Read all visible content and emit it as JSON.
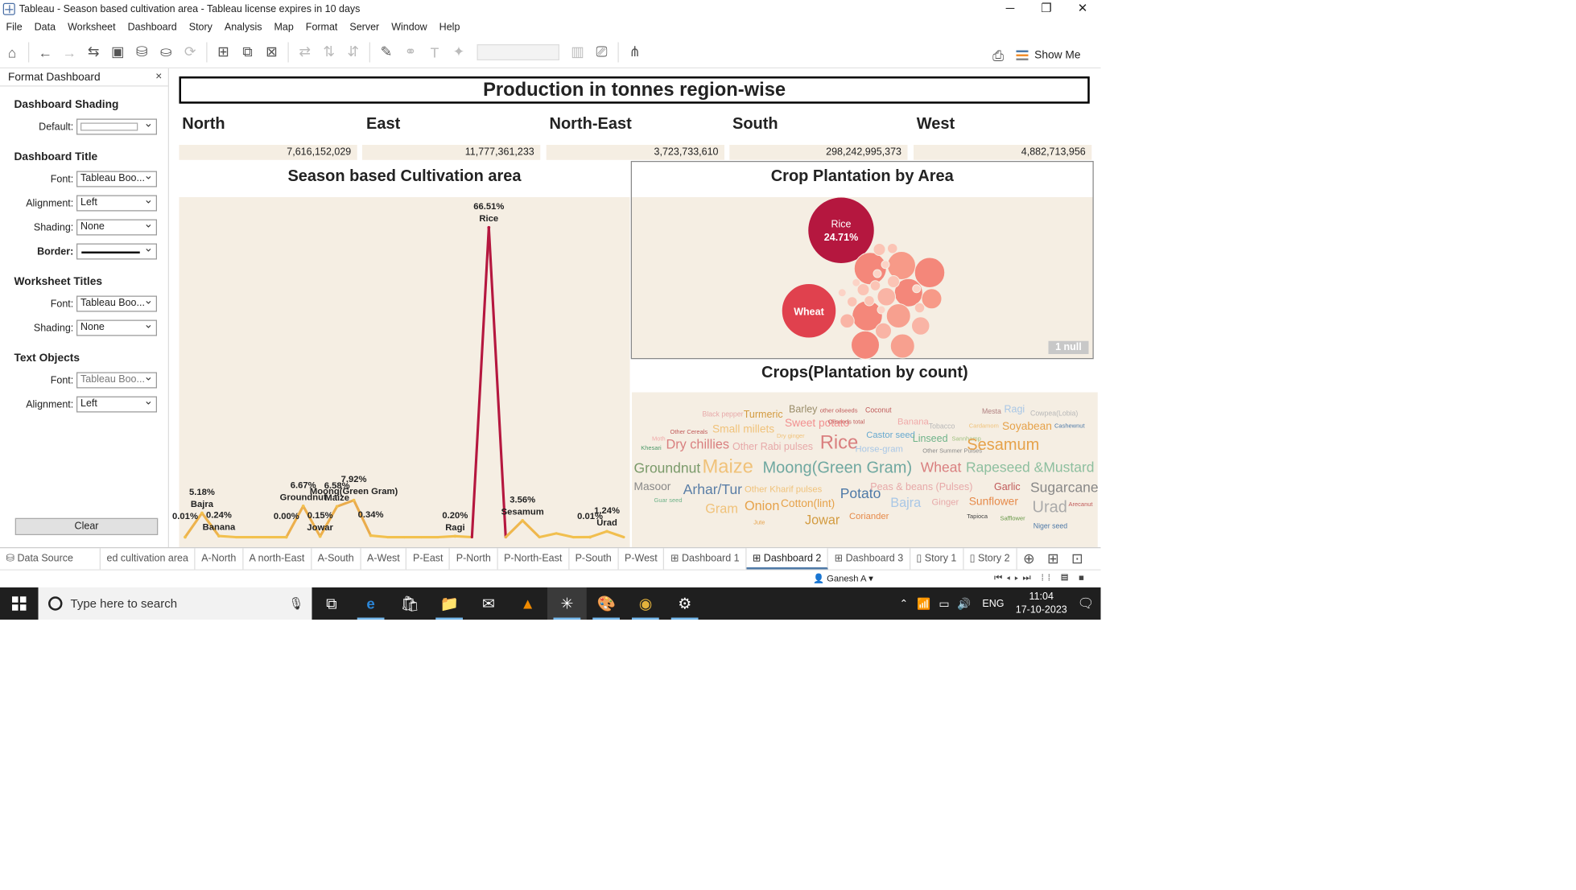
{
  "window": {
    "title": "Tableau - Season based cultivation area - Tableau license expires in 10 days",
    "controls": [
      "─",
      "❐",
      "✕"
    ]
  },
  "menu": [
    "File",
    "Data",
    "Worksheet",
    "Dashboard",
    "Story",
    "Analysis",
    "Map",
    "Format",
    "Server",
    "Window",
    "Help"
  ],
  "toolbar": {
    "show_me_label": "Show Me"
  },
  "format_panel": {
    "title": "Format Dashboard",
    "close": "×",
    "shading_section": "Dashboard Shading",
    "default_label": "Default:",
    "title_section": "Dashboard Title",
    "font_label": "Font:",
    "font_value": "Tableau Boo...",
    "alignment_label": "Alignment:",
    "alignment_value": "Left",
    "shading_label": "Shading:",
    "shading_value": "None",
    "border_label": "Border:",
    "worksheet_section": "Worksheet Titles",
    "ws_font_value": "Tableau Boo...",
    "ws_shading_value": "None",
    "text_section": "Text Objects",
    "txt_font_value": "Tableau Boo...",
    "txt_alignment_value": "Left",
    "clear_label": "Clear"
  },
  "dashboard": {
    "title": "Production in tonnes region-wise",
    "regions": [
      {
        "name": "North",
        "value": "7,616,152,029"
      },
      {
        "name": "East",
        "value": "11,777,361,233"
      },
      {
        "name": "North-East",
        "value": "3,723,733,610"
      },
      {
        "name": "South",
        "value": "298,242,995,373"
      },
      {
        "name": "West",
        "value": "4,882,713,956"
      }
    ],
    "line_title": "Season based Cultivation area",
    "bubble_title": "Crop Plantation by Area",
    "cloud_title": "Crops(Plantation by count)",
    "null_badge": "1 null"
  },
  "chart_data": [
    {
      "type": "line",
      "title": "Season based Cultivation area",
      "ylim": [
        0,
        70
      ],
      "colors": {
        "low": "#f2c14e",
        "high": "#b5173f"
      },
      "points": [
        {
          "x": 0,
          "y": 0.01,
          "label": "0.01%",
          "name": ""
        },
        {
          "x": 1,
          "y": 5.18,
          "label": "5.18%",
          "name": "Bajra"
        },
        {
          "x": 2,
          "y": 0.24,
          "label": "0.24%",
          "name": "Banana"
        },
        {
          "x": 3,
          "y": 0.0
        },
        {
          "x": 4,
          "y": 0.0
        },
        {
          "x": 5,
          "y": 0.0
        },
        {
          "x": 6,
          "y": 0.0,
          "label": "0.00%",
          "name": ""
        },
        {
          "x": 7,
          "y": 6.67,
          "label": "6.67%",
          "name": "Groundnut"
        },
        {
          "x": 8,
          "y": 0.15,
          "label": "0.15%",
          "name": "Jowar"
        },
        {
          "x": 9,
          "y": 6.58,
          "label": "6.58%",
          "name": "Maize"
        },
        {
          "x": 10,
          "y": 7.92,
          "label": "7.92%",
          "name": "Moong(Green Gram)"
        },
        {
          "x": 11,
          "y": 0.34,
          "label": "0.34%",
          "name": ""
        },
        {
          "x": 12,
          "y": 0.0
        },
        {
          "x": 13,
          "y": 0.0
        },
        {
          "x": 14,
          "y": 0.0
        },
        {
          "x": 15,
          "y": 0.0
        },
        {
          "x": 16,
          "y": 0.2,
          "label": "0.20%",
          "name": "Ragi"
        },
        {
          "x": 17,
          "y": 0.0
        },
        {
          "x": 18,
          "y": 66.51,
          "label": "66.51%",
          "name": "Rice"
        },
        {
          "x": 19,
          "y": 0.0
        },
        {
          "x": 20,
          "y": 3.56,
          "label": "3.56%",
          "name": "Sesamum"
        },
        {
          "x": 21,
          "y": 0.0
        },
        {
          "x": 22,
          "y": 0.8
        },
        {
          "x": 23,
          "y": 0.0
        },
        {
          "x": 24,
          "y": 0.01,
          "label": "0.01%",
          "name": ""
        },
        {
          "x": 25,
          "y": 1.24,
          "label": "1.24%",
          "name": "Urad"
        },
        {
          "x": 26,
          "y": 0.0
        }
      ]
    },
    {
      "type": "scatter",
      "title": "Crop Plantation by Area",
      "labeled": [
        {
          "name": "Rice",
          "value": "24.71%"
        },
        {
          "name": "Wheat",
          "value": ""
        }
      ]
    }
  ],
  "word_cloud": [
    {
      "t": "Black pepper",
      "s": 7,
      "c": "#e7a9a9"
    },
    {
      "t": "Turmeric",
      "s": 10,
      "c": "#d39b40"
    },
    {
      "t": "Barley",
      "s": 10,
      "c": "#9a8d6a"
    },
    {
      "t": "other oilseeds",
      "s": 6,
      "c": "#c05a5a"
    },
    {
      "t": "Coconut",
      "s": 7,
      "c": "#c05a5a"
    },
    {
      "t": "Mesta",
      "s": 7,
      "c": "#b08080"
    },
    {
      "t": "Ragi",
      "s": 10,
      "c": "#a9c7e6"
    },
    {
      "t": "Cowpea(Lobia)",
      "s": 7,
      "c": "#b8b8b8"
    },
    {
      "t": "Other Cereals",
      "s": 6,
      "c": "#c05a5a"
    },
    {
      "t": "Small millets",
      "s": 11,
      "c": "#f0c27a"
    },
    {
      "t": "Sweet potato",
      "s": 11,
      "c": "#f29090"
    },
    {
      "t": "Oilseeds total",
      "s": 6,
      "c": "#c05a5a"
    },
    {
      "t": "Banana",
      "s": 9,
      "c": "#f0a9a9"
    },
    {
      "t": "Tobacco",
      "s": 7,
      "c": "#b8b8b8"
    },
    {
      "t": "Cardamom",
      "s": 6,
      "c": "#f0c27a"
    },
    {
      "t": "Soyabean",
      "s": 11,
      "c": "#e6a24a"
    },
    {
      "t": "Cashewnut",
      "s": 6,
      "c": "#4e79a7"
    },
    {
      "t": "Moth",
      "s": 6,
      "c": "#f0a9a9"
    },
    {
      "t": "Dry ginger",
      "s": 6,
      "c": "#f0c27a"
    },
    {
      "t": "Castor seed",
      "s": 9,
      "c": "#67a9cf"
    },
    {
      "t": "Sannhamp",
      "s": 6,
      "c": "#a0c080"
    },
    {
      "t": "Linseed",
      "s": 10,
      "c": "#6fb38a"
    },
    {
      "t": "Khesari",
      "s": 6,
      "c": "#4e9a6a"
    },
    {
      "t": "Dry chillies",
      "s": 13,
      "c": "#d97f7f"
    },
    {
      "t": "Other Rabi pulses",
      "s": 10,
      "c": "#e7a9a9"
    },
    {
      "t": "Rice",
      "s": 19,
      "c": "#d97f7f"
    },
    {
      "t": "Horse-gram",
      "s": 9,
      "c": "#a9c7e6"
    },
    {
      "t": "Other Summer Pulses",
      "s": 6,
      "c": "#888"
    },
    {
      "t": "Sesamum",
      "s": 16,
      "c": "#e6a24a"
    },
    {
      "t": "Groundnut",
      "s": 14,
      "c": "#7a9a6a"
    },
    {
      "t": "Maize",
      "s": 19,
      "c": "#f0c27a"
    },
    {
      "t": "Moong(Green Gram)",
      "s": 16,
      "c": "#6fa8a0"
    },
    {
      "t": "Wheat",
      "s": 14,
      "c": "#d97f7f"
    },
    {
      "t": "Rapeseed &Mustard",
      "s": 14,
      "c": "#8dbf9f"
    },
    {
      "t": "Masoor",
      "s": 11,
      "c": "#888"
    },
    {
      "t": "Arhar/Tur",
      "s": 14,
      "c": "#5a7ea6"
    },
    {
      "t": "Other Kharif pulses",
      "s": 9,
      "c": "#f0c27a"
    },
    {
      "t": "Potato",
      "s": 14,
      "c": "#4e79a7"
    },
    {
      "t": "Peas & beans (Pulses)",
      "s": 10,
      "c": "#e7a9a9"
    },
    {
      "t": "Garlic",
      "s": 10,
      "c": "#c05a5a"
    },
    {
      "t": "Sugarcane",
      "s": 14,
      "c": "#888"
    },
    {
      "t": "Guar seed",
      "s": 6,
      "c": "#6fb38a"
    },
    {
      "t": "Gram",
      "s": 13,
      "c": "#f0c27a"
    },
    {
      "t": "Onion",
      "s": 13,
      "c": "#e6a24a"
    },
    {
      "t": "Cotton(lint)",
      "s": 11,
      "c": "#e6a24a"
    },
    {
      "t": "Bajra",
      "s": 13,
      "c": "#a9c7e6"
    },
    {
      "t": "Ginger",
      "s": 9,
      "c": "#e7a9a9"
    },
    {
      "t": "Sunflower",
      "s": 11,
      "c": "#e68a4a"
    },
    {
      "t": "Urad",
      "s": 16,
      "c": "#aaa"
    },
    {
      "t": "Arecanut",
      "s": 6,
      "c": "#c05a5a"
    },
    {
      "t": "Jute",
      "s": 6,
      "c": "#e6a24a"
    },
    {
      "t": "Jowar",
      "s": 13,
      "c": "#d39b40"
    },
    {
      "t": "Coriander",
      "s": 9,
      "c": "#e68a4a"
    },
    {
      "t": "Tapioca",
      "s": 6,
      "c": "#444"
    },
    {
      "t": "Safflower",
      "s": 6,
      "c": "#6a9a4a"
    },
    {
      "t": "Niger seed",
      "s": 7,
      "c": "#4e79a7"
    }
  ],
  "tabs": [
    "Data Source",
    "ed cultivation area",
    "A-North",
    "A north-East",
    "A-South",
    "A-West",
    "P-East",
    "P-North",
    "P-North-East",
    "P-South",
    "P-West",
    "Dashboard 1",
    "Dashboard 2",
    "Dashboard 3",
    "Story 1",
    "Story 2"
  ],
  "active_tab": "Dashboard 2",
  "status": {
    "user": "Ganesh A"
  },
  "taskbar": {
    "search_placeholder": "Type here to search",
    "language": "ENG",
    "time": "11:04",
    "date": "17-10-2023"
  }
}
